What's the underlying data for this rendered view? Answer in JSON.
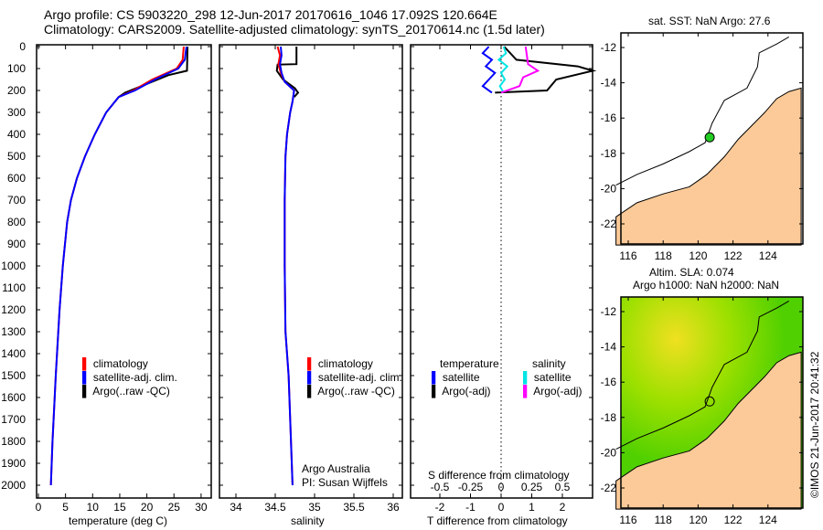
{
  "title_line1": "Argo profile: CS 5903220_298 12-Jun-2017 20170616_1046 17.092S 120.664E",
  "title_line2": "Climatology: CARS2009. Satellite-adjusted climatology: synTS_20170614.nc (1.5d later)",
  "timestamp": "©IMOS 21-Jun-2017 20:41:32",
  "colors": {
    "climatology": "#ff0000",
    "satellite": "#0000ff",
    "argo": "#000000",
    "sat_sal": "#00e5e5",
    "argo_sal": "#ff00ff",
    "land": "#fbca98"
  },
  "chart_data": [
    {
      "type": "line",
      "name": "temperature",
      "xlabel": "temperature (deg C)",
      "xlim": [
        -1,
        31
      ],
      "ylim": [
        2050,
        0
      ],
      "xticks": [
        "0",
        "5",
        "10",
        "15",
        "20",
        "25",
        "30"
      ],
      "yticks": [
        "0",
        "100",
        "200",
        "300",
        "400",
        "500",
        "600",
        "700",
        "800",
        "900",
        "1000",
        "1100",
        "1200",
        "1300",
        "1400",
        "1500",
        "1600",
        "1700",
        "1800",
        "1900",
        "2000"
      ],
      "legend": [
        "climatology",
        "satellite-adj. clim.",
        "Argo(..raw -QC)"
      ],
      "series": [
        {
          "name": "climatology",
          "depth": [
            0,
            60,
            100,
            150,
            200,
            230,
            300,
            400,
            500,
            600,
            700,
            800,
            1000,
            1200,
            1500,
            1800,
            2000
          ],
          "values": [
            26.8,
            26.6,
            25.5,
            21,
            17.5,
            14.8,
            12.5,
            10.4,
            8.6,
            7.1,
            6.0,
            5.3,
            4.5,
            3.9,
            3.2,
            2.6,
            2.3
          ]
        },
        {
          "name": "satellite-adj. clim.",
          "depth": [
            0,
            60,
            100,
            150,
            200,
            230,
            300,
            400,
            500,
            600,
            700,
            800,
            1000,
            1200,
            1500,
            1800,
            2000
          ],
          "values": [
            27.3,
            27.0,
            25.8,
            21.5,
            17.8,
            14.8,
            12.5,
            10.4,
            8.6,
            7.1,
            6.0,
            5.3,
            4.5,
            3.9,
            3.2,
            2.6,
            2.3
          ]
        },
        {
          "name": "Argo",
          "depth": [
            0,
            110,
            130,
            170,
            210,
            230
          ],
          "values": [
            27.5,
            27.4,
            24,
            20,
            16,
            14.8
          ]
        }
      ]
    },
    {
      "type": "line",
      "name": "salinity",
      "xlabel": "salinity",
      "xlim": [
        33.8,
        36.1
      ],
      "ylim": [
        2050,
        0
      ],
      "xticks": [
        "34",
        "34.5",
        "35",
        "35.5",
        "36"
      ],
      "legend": [
        "climatology",
        "satellite-adj. clim.",
        "Argo(..raw -QC)"
      ],
      "annotation": [
        "Argo Australia",
        "PI: Susan Wijffels"
      ],
      "series": [
        {
          "name": "climatology",
          "depth": [
            0,
            40,
            80,
            120,
            160,
            200,
            250,
            300,
            400,
            500,
            700,
            1000,
            1300,
            1500,
            1800,
            2000
          ],
          "values": [
            34.53,
            34.56,
            34.54,
            34.57,
            34.62,
            34.74,
            34.72,
            34.69,
            34.65,
            34.63,
            34.62,
            34.62,
            34.63,
            34.67,
            34.7,
            34.72
          ]
        },
        {
          "name": "satellite-adj. clim.",
          "depth": [
            0,
            40,
            80,
            120,
            160,
            200,
            250,
            300,
            400,
            500,
            700,
            1000,
            1300,
            1500,
            1800,
            2000
          ],
          "values": [
            34.57,
            34.58,
            34.56,
            34.58,
            34.62,
            34.74,
            34.72,
            34.69,
            34.65,
            34.63,
            34.62,
            34.62,
            34.63,
            34.67,
            34.7,
            34.72
          ]
        },
        {
          "name": "Argo",
          "depth": [
            0,
            80,
            82,
            110,
            150,
            190,
            210,
            230
          ],
          "values": [
            34.77,
            34.77,
            34.53,
            34.52,
            34.6,
            34.75,
            34.79,
            34.74
          ]
        }
      ]
    },
    {
      "type": "line",
      "name": "difference",
      "xlabel": "T difference from climatology",
      "x2label": "S difference from climatology",
      "xlim": [
        -3,
        3
      ],
      "xticks": [
        "-2",
        "-1",
        "0",
        "1",
        "2"
      ],
      "x2ticks": [
        "-0.5",
        "-0.25",
        "0",
        "0.25",
        "0.5"
      ],
      "legend_headers": [
        "temperature",
        "salinity"
      ],
      "legend_t": [
        "satellite",
        "Argo(-adj)"
      ],
      "legend_s": [
        "satellite",
        "Argo(-adj)"
      ],
      "series": [
        {
          "name": "T satellite",
          "depth": [
            0,
            30,
            60,
            90,
            120,
            150,
            180,
            210
          ],
          "values": [
            -0.4,
            -0.6,
            -0.3,
            -0.5,
            -0.2,
            -0.4,
            -0.6,
            -0.3
          ]
        },
        {
          "name": "T Argo",
          "depth": [
            0,
            60,
            90,
            110,
            150,
            200,
            210
          ],
          "values": [
            0.1,
            0.5,
            2.5,
            3,
            1.8,
            1.5,
            -0.2
          ]
        },
        {
          "name": "S satellite",
          "depth": [
            0,
            30,
            60,
            90,
            120,
            150,
            180,
            210
          ],
          "values": [
            0.02,
            0.04,
            -0.02,
            0.05,
            0.0,
            0.03,
            -0.01,
            0.02
          ]
        },
        {
          "name": "S Argo",
          "depth": [
            0,
            80,
            110,
            140,
            180,
            210
          ],
          "values": [
            0.2,
            0.22,
            0.3,
            0.18,
            0.15,
            0.0
          ]
        }
      ]
    },
    {
      "type": "map",
      "name": "sst-map",
      "title": "sat. SST: NaN Argo: 27.6",
      "xticks": [
        "116",
        "118",
        "120",
        "122",
        "124"
      ],
      "yticks": [
        "-12",
        "-14",
        "-16",
        "-18",
        "-20",
        "-22"
      ],
      "argo_lon": 120.664,
      "argo_lat": -17.092
    },
    {
      "type": "map",
      "name": "sla-map",
      "title1": "Altim. SLA: 0.074",
      "title2": "Argo h1000: NaN h2000: NaN",
      "xticks": [
        "116",
        "118",
        "120",
        "122",
        "124"
      ],
      "yticks": [
        "-12",
        "-14",
        "-16",
        "-18",
        "-20",
        "-22"
      ],
      "argo_lon": 120.664,
      "argo_lat": -17.092
    }
  ]
}
